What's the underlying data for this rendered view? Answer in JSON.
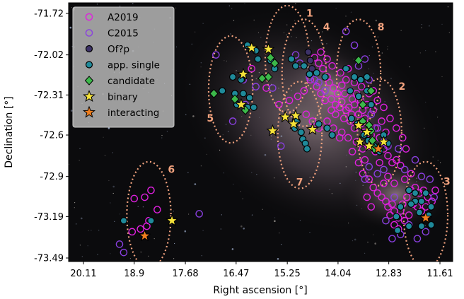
{
  "chart_data": {
    "type": "scatter",
    "title": "",
    "xlabel": "Right ascension [°]",
    "ylabel": "Declination [°]",
    "xlim": [
      20.11,
      11.61
    ],
    "ylim": [
      -73.49,
      -71.72
    ],
    "x_inverted": true,
    "x_ticks": [
      20.11,
      18.9,
      17.68,
      16.47,
      15.25,
      14.04,
      12.83,
      11.61
    ],
    "x_tick_labels": [
      "20.11",
      "18.9",
      "17.68",
      "16.47",
      "15.25",
      "14.04",
      "12.83",
      "11.61"
    ],
    "y_ticks": [
      -71.72,
      -72.02,
      -72.31,
      -72.6,
      -72.9,
      -73.19,
      -73.49
    ],
    "y_tick_labels": [
      "-71.72",
      "-72.02",
      "-72.31",
      "-72.6",
      "-72.9",
      "-73.19",
      "-73.49"
    ],
    "background": "sky image (SMC)",
    "grid": false,
    "legend_position": "top-left",
    "fields": [
      {
        "label": "1",
        "ra": 15.25,
        "dec": -72.05,
        "radius_deg": 0.73
      },
      {
        "label": "2",
        "ra": 13.05,
        "dec": -72.58,
        "radius_deg": 0.73
      },
      {
        "label": "3",
        "ra": 11.95,
        "dec": -73.18,
        "radius_deg": 0.73
      },
      {
        "label": "4",
        "ra": 14.85,
        "dec": -72.15,
        "radius_deg": 0.73
      },
      {
        "label": "5",
        "ra": 16.6,
        "dec": -72.27,
        "radius_deg": 0.73
      },
      {
        "label": "6",
        "ra": 18.55,
        "dec": -73.18,
        "radius_deg": 0.73
      },
      {
        "label": "7",
        "ra": 14.95,
        "dec": -72.6,
        "radius_deg": 0.73
      },
      {
        "label": "8",
        "ra": 13.55,
        "dec": -72.15,
        "radius_deg": 0.73
      }
    ],
    "series": [
      {
        "name": "A2019",
        "marker": "open-circle",
        "color": "#e020e0",
        "points": [
          [
            18.65,
            -73.05
          ],
          [
            18.9,
            -73.06
          ],
          [
            18.5,
            -73.0
          ],
          [
            18.35,
            -73.14
          ],
          [
            18.55,
            -73.22
          ],
          [
            18.75,
            -73.28
          ],
          [
            18.95,
            -73.3
          ],
          [
            18.6,
            -73.26
          ],
          [
            16.1,
            -72.12
          ],
          [
            15.75,
            -72.26
          ],
          [
            15.45,
            -72.38
          ],
          [
            15.2,
            -72.35
          ],
          [
            15.0,
            -72.32
          ],
          [
            14.85,
            -72.28
          ],
          [
            14.6,
            -72.04
          ],
          [
            14.5,
            -72.08
          ],
          [
            14.4,
            -72.12
          ],
          [
            14.3,
            -72.18
          ],
          [
            14.25,
            -72.22
          ],
          [
            14.15,
            -72.26
          ],
          [
            14.05,
            -72.3
          ],
          [
            13.95,
            -72.24
          ],
          [
            13.85,
            -72.2
          ],
          [
            13.75,
            -72.28
          ],
          [
            13.7,
            -72.34
          ],
          [
            13.6,
            -72.3
          ],
          [
            14.2,
            -72.34
          ],
          [
            14.1,
            -72.38
          ],
          [
            13.95,
            -72.36
          ],
          [
            13.85,
            -72.42
          ],
          [
            13.78,
            -72.4
          ],
          [
            13.65,
            -72.38
          ],
          [
            13.55,
            -72.45
          ],
          [
            13.45,
            -72.42
          ],
          [
            13.35,
            -72.38
          ],
          [
            13.3,
            -72.3
          ],
          [
            13.2,
            -72.28
          ],
          [
            13.9,
            -72.48
          ],
          [
            13.75,
            -72.5
          ],
          [
            13.65,
            -72.55
          ],
          [
            13.5,
            -72.52
          ],
          [
            13.4,
            -72.58
          ],
          [
            13.25,
            -72.6
          ],
          [
            13.15,
            -72.55
          ],
          [
            13.05,
            -72.62
          ],
          [
            12.95,
            -72.7
          ],
          [
            12.85,
            -72.75
          ],
          [
            12.75,
            -72.8
          ],
          [
            12.65,
            -72.78
          ],
          [
            13.45,
            -72.88
          ],
          [
            13.3,
            -72.92
          ],
          [
            13.2,
            -72.98
          ],
          [
            13.1,
            -73.02
          ],
          [
            13.0,
            -73.05
          ],
          [
            12.9,
            -73.08
          ],
          [
            12.85,
            -73.12
          ],
          [
            12.8,
            -73.18
          ],
          [
            12.7,
            -73.15
          ],
          [
            12.6,
            -73.2
          ],
          [
            12.5,
            -73.1
          ],
          [
            12.4,
            -73.05
          ],
          [
            12.3,
            -73.0
          ],
          [
            12.2,
            -72.98
          ],
          [
            12.1,
            -73.02
          ],
          [
            12.0,
            -73.0
          ],
          [
            11.9,
            -73.05
          ],
          [
            11.8,
            -73.08
          ],
          [
            11.72,
            -73.0
          ],
          [
            12.95,
            -72.95
          ],
          [
            12.75,
            -73.1
          ],
          [
            12.55,
            -73.15
          ],
          [
            12.45,
            -73.22
          ],
          [
            12.35,
            -73.18
          ],
          [
            12.6,
            -73.28
          ],
          [
            12.7,
            -73.25
          ],
          [
            13.35,
            -73.05
          ],
          [
            13.25,
            -73.12
          ],
          [
            12.25,
            -73.1
          ],
          [
            12.15,
            -73.12
          ],
          [
            12.05,
            -73.15
          ],
          [
            11.95,
            -73.12
          ],
          [
            14.8,
            -72.45
          ],
          [
            14.65,
            -72.5
          ],
          [
            14.5,
            -72.55
          ],
          [
            14.3,
            -72.5
          ],
          [
            14.1,
            -72.45
          ],
          [
            13.95,
            -72.58
          ],
          [
            13.8,
            -72.62
          ],
          [
            13.6,
            -72.65
          ],
          [
            13.45,
            -72.7
          ],
          [
            13.3,
            -72.68
          ],
          [
            13.15,
            -72.72
          ],
          [
            13.05,
            -72.8
          ],
          [
            14.7,
            -72.2
          ],
          [
            14.55,
            -72.25
          ],
          [
            14.45,
            -72.3
          ],
          [
            14.35,
            -72.35
          ],
          [
            14.2,
            -72.42
          ],
          [
            14.0,
            -72.4
          ],
          [
            13.88,
            -72.3
          ],
          [
            13.72,
            -72.45
          ],
          [
            13.5,
            -72.35
          ],
          [
            13.4,
            -72.48
          ],
          [
            13.0,
            -72.5
          ],
          [
            12.9,
            -72.58
          ],
          [
            12.55,
            -72.82
          ],
          [
            12.45,
            -72.92
          ],
          [
            12.3,
            -72.88
          ],
          [
            12.7,
            -72.95
          ],
          [
            12.85,
            -72.9
          ],
          [
            13.4,
            -72.78
          ],
          [
            13.55,
            -72.8
          ],
          [
            13.7,
            -72.72
          ],
          [
            14.0,
            -72.62
          ],
          [
            14.15,
            -72.55
          ],
          [
            13.2,
            -72.42
          ],
          [
            13.1,
            -72.35
          ],
          [
            14.45,
            -72.0
          ],
          [
            14.3,
            -72.05
          ],
          [
            14.18,
            -72.1
          ],
          [
            13.98,
            -72.15
          ],
          [
            13.8,
            -72.12
          ],
          [
            13.65,
            -72.22
          ],
          [
            13.48,
            -72.25
          ],
          [
            12.95,
            -72.4
          ],
          [
            12.8,
            -72.48
          ],
          [
            12.65,
            -72.55
          ],
          [
            12.5,
            -72.62
          ],
          [
            12.42,
            -72.7
          ]
        ]
      },
      {
        "name": "C2015",
        "marker": "open-circle",
        "color": "#8a3fe0",
        "points": [
          [
            19.25,
            -73.39
          ],
          [
            19.15,
            -73.45
          ],
          [
            17.35,
            -73.17
          ],
          [
            16.95,
            -72.02
          ],
          [
            16.3,
            -72.2
          ],
          [
            16.0,
            -72.25
          ],
          [
            15.6,
            -72.26
          ],
          [
            16.25,
            -72.38
          ],
          [
            16.55,
            -72.5
          ],
          [
            15.4,
            -72.68
          ],
          [
            15.05,
            -72.02
          ],
          [
            14.95,
            -72.08
          ],
          [
            14.72,
            -72.18
          ],
          [
            14.5,
            -72.22
          ],
          [
            13.85,
            -71.85
          ],
          [
            13.65,
            -71.95
          ],
          [
            13.4,
            -72.05
          ],
          [
            13.3,
            -72.2
          ],
          [
            13.25,
            -72.45
          ],
          [
            13.1,
            -72.55
          ],
          [
            12.95,
            -72.65
          ],
          [
            12.85,
            -72.68
          ],
          [
            12.6,
            -72.7
          ],
          [
            12.95,
            -72.85
          ],
          [
            13.1,
            -72.88
          ],
          [
            13.3,
            -72.83
          ],
          [
            12.45,
            -72.85
          ],
          [
            12.2,
            -72.78
          ],
          [
            12.05,
            -72.9
          ],
          [
            11.85,
            -72.92
          ],
          [
            11.75,
            -73.05
          ],
          [
            11.95,
            -73.3
          ],
          [
            12.15,
            -73.35
          ],
          [
            12.55,
            -73.32
          ],
          [
            12.7,
            -73.05
          ],
          [
            12.9,
            -73.22
          ],
          [
            13.4,
            -72.92
          ],
          [
            14.6,
            -72.2
          ],
          [
            14.35,
            -72.28
          ],
          [
            13.55,
            -72.1
          ],
          [
            12.35,
            -73.25
          ],
          [
            12.75,
            -73.35
          ]
        ]
      },
      {
        "name": "Of?p",
        "marker": "filled-circle",
        "color": "#3d3268",
        "points": [
          [
            14.75,
            -72.0
          ],
          [
            14.7,
            -72.06
          ],
          [
            14.66,
            -72.12
          ]
        ]
      },
      {
        "name": "app. single",
        "marker": "filled-circle",
        "color": "#1f8a9a",
        "points": [
          [
            19.15,
            -73.22
          ],
          [
            18.5,
            -73.22
          ],
          [
            16.8,
            -72.28
          ],
          [
            16.5,
            -72.3
          ],
          [
            16.45,
            -72.38
          ],
          [
            16.3,
            -72.3
          ],
          [
            16.15,
            -72.33
          ],
          [
            16.2,
            -72.4
          ],
          [
            16.05,
            -72.4
          ],
          [
            16.35,
            -72.2
          ],
          [
            16.55,
            -72.18
          ],
          [
            16.2,
            -71.95
          ],
          [
            16.0,
            -71.99
          ],
          [
            15.95,
            -72.05
          ],
          [
            15.65,
            -72.06
          ],
          [
            15.55,
            -72.12
          ],
          [
            15.15,
            -72.05
          ],
          [
            15.05,
            -72.1
          ],
          [
            14.85,
            -72.1
          ],
          [
            14.72,
            -72.16
          ],
          [
            14.55,
            -72.15
          ],
          [
            14.35,
            -72.18
          ],
          [
            15.02,
            -72.5
          ],
          [
            15.07,
            -72.55
          ],
          [
            14.92,
            -72.58
          ],
          [
            14.88,
            -72.63
          ],
          [
            14.82,
            -72.66
          ],
          [
            14.78,
            -72.7
          ],
          [
            14.5,
            -72.52
          ],
          [
            14.3,
            -72.55
          ],
          [
            14.18,
            -72.6
          ],
          [
            13.85,
            -72.12
          ],
          [
            13.65,
            -72.18
          ],
          [
            13.5,
            -72.2
          ],
          [
            13.35,
            -72.18
          ],
          [
            13.75,
            -72.28
          ],
          [
            13.55,
            -72.32
          ],
          [
            13.35,
            -72.28
          ],
          [
            13.25,
            -72.38
          ],
          [
            13.72,
            -72.48
          ],
          [
            13.58,
            -72.52
          ],
          [
            13.42,
            -72.6
          ],
          [
            13.32,
            -72.64
          ],
          [
            13.18,
            -72.68
          ],
          [
            13.05,
            -72.72
          ],
          [
            12.95,
            -72.6
          ],
          [
            12.85,
            -72.66
          ],
          [
            12.35,
            -73.0
          ],
          [
            12.2,
            -73.02
          ],
          [
            12.05,
            -73.08
          ],
          [
            11.95,
            -73.02
          ],
          [
            12.2,
            -73.08
          ],
          [
            11.82,
            -73.12
          ],
          [
            12.3,
            -73.1
          ],
          [
            12.1,
            -73.16
          ],
          [
            11.88,
            -73.18
          ],
          [
            12.65,
            -73.19
          ],
          [
            12.62,
            -73.29
          ],
          [
            12.35,
            -73.26
          ],
          [
            12.05,
            -73.26
          ],
          [
            11.82,
            -73.25
          ],
          [
            12.55,
            -73.12
          ]
        ]
      },
      {
        "name": "candidate",
        "marker": "diamond",
        "color": "#3cb84a",
        "points": [
          [
            17.0,
            -72.3
          ],
          [
            16.5,
            -72.34
          ],
          [
            16.25,
            -72.42
          ],
          [
            15.55,
            -72.08
          ],
          [
            15.65,
            -72.04
          ],
          [
            15.7,
            -72.18
          ],
          [
            15.85,
            -72.19
          ],
          [
            13.55,
            -72.06
          ],
          [
            13.25,
            -72.28
          ],
          [
            13.45,
            -72.38
          ],
          [
            13.45,
            -72.5
          ],
          [
            13.3,
            -72.53
          ],
          [
            13.25,
            -72.57
          ],
          [
            13.22,
            -72.64
          ],
          [
            13.18,
            -72.7
          ]
        ]
      },
      {
        "name": "binary",
        "marker": "star",
        "color": "#f6e33a",
        "points": [
          [
            16.1,
            -71.97
          ],
          [
            15.7,
            -71.98
          ],
          [
            16.3,
            -72.16
          ],
          [
            16.35,
            -72.38
          ],
          [
            15.3,
            -72.47
          ],
          [
            15.05,
            -72.46
          ],
          [
            15.1,
            -72.52
          ],
          [
            14.65,
            -72.56
          ],
          [
            15.6,
            -72.57
          ],
          [
            13.55,
            -72.53
          ],
          [
            13.35,
            -72.58
          ],
          [
            13.52,
            -72.65
          ],
          [
            13.3,
            -72.68
          ],
          [
            12.95,
            -72.65
          ],
          [
            18.0,
            -73.22
          ]
        ]
      },
      {
        "name": "interacting",
        "marker": "star",
        "color": "#f07f1f",
        "points": [
          [
            18.65,
            -73.33
          ],
          [
            13.08,
            -72.7
          ],
          [
            11.95,
            -73.2
          ]
        ]
      }
    ]
  }
}
